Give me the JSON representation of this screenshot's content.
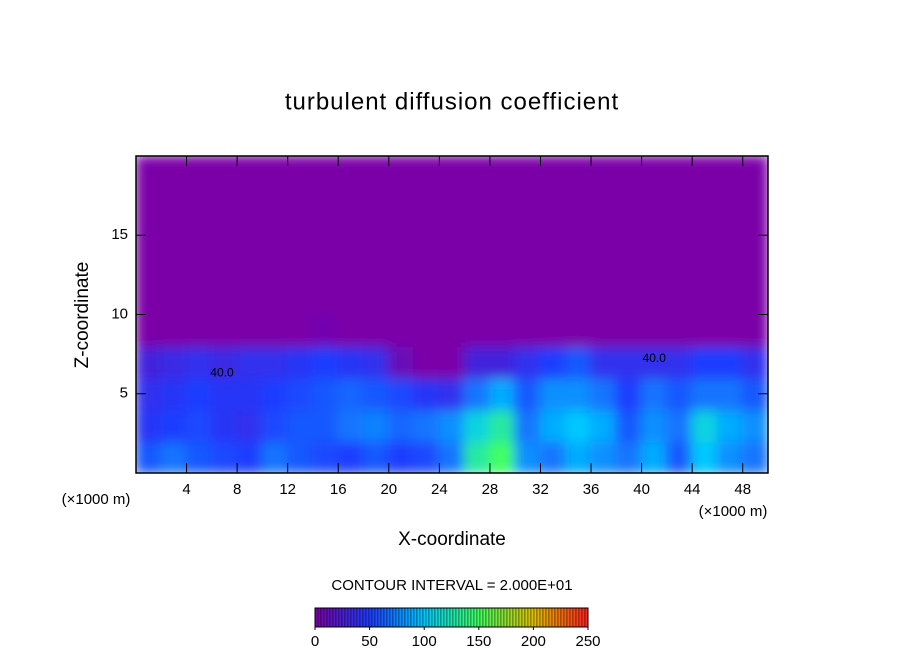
{
  "chart_data": {
    "type": "heatmap",
    "title": "turbulent diffusion coefficient",
    "xlabel": "X-coordinate",
    "ylabel": "Z-coordinate",
    "x_unit_label": "(×1000 m)",
    "y_unit_label": "(×1000 m)",
    "contour_interval_text": "CONTOUR INTERVAL = 2.000E+01",
    "xlim": [
      0,
      50
    ],
    "ylim": [
      0,
      20
    ],
    "xticks": [
      4,
      8,
      12,
      16,
      20,
      24,
      28,
      32,
      36,
      40,
      44,
      48
    ],
    "yticks": [
      5,
      10,
      15
    ],
    "x": [
      1,
      3,
      5,
      7,
      9,
      11,
      13,
      15,
      17,
      19,
      21,
      23,
      25,
      27,
      29,
      31,
      33,
      35,
      37,
      39,
      41,
      43,
      45,
      47,
      49
    ],
    "y": [
      1,
      3,
      5,
      7,
      9,
      11,
      13,
      15,
      17,
      19
    ],
    "z": [
      [
        60,
        70,
        60,
        55,
        50,
        70,
        60,
        55,
        50,
        60,
        50,
        55,
        70,
        130,
        150,
        80,
        70,
        90,
        80,
        70,
        90,
        60,
        100,
        80,
        70
      ],
      [
        45,
        50,
        55,
        45,
        40,
        55,
        60,
        60,
        70,
        75,
        65,
        70,
        80,
        110,
        130,
        70,
        90,
        100,
        90,
        60,
        80,
        70,
        110,
        90,
        80
      ],
      [
        40,
        45,
        50,
        45,
        45,
        50,
        55,
        60,
        65,
        60,
        55,
        45,
        40,
        70,
        90,
        60,
        80,
        80,
        70,
        50,
        70,
        60,
        70,
        70,
        60
      ],
      [
        30,
        35,
        40,
        35,
        40,
        40,
        45,
        50,
        45,
        40,
        10,
        0,
        0,
        30,
        30,
        40,
        50,
        60,
        40,
        40,
        40,
        40,
        50,
        50,
        40
      ],
      [
        0,
        0,
        0,
        0,
        0,
        0,
        0,
        5,
        0,
        0,
        0,
        0,
        0,
        0,
        0,
        0,
        0,
        0,
        0,
        0,
        0,
        0,
        0,
        0,
        0
      ],
      [
        0,
        0,
        0,
        0,
        0,
        0,
        0,
        0,
        0,
        0,
        0,
        0,
        0,
        0,
        0,
        0,
        0,
        0,
        0,
        0,
        0,
        0,
        0,
        0,
        0
      ],
      [
        0,
        0,
        0,
        0,
        0,
        0,
        0,
        0,
        0,
        0,
        0,
        0,
        0,
        0,
        0,
        0,
        0,
        0,
        0,
        0,
        0,
        0,
        0,
        0,
        0
      ],
      [
        0,
        0,
        0,
        0,
        0,
        0,
        0,
        0,
        0,
        0,
        0,
        0,
        0,
        0,
        0,
        0,
        0,
        0,
        0,
        0,
        0,
        0,
        0,
        0,
        0
      ],
      [
        0,
        0,
        0,
        0,
        0,
        0,
        0,
        0,
        0,
        0,
        0,
        0,
        0,
        0,
        0,
        0,
        0,
        0,
        0,
        0,
        0,
        0,
        0,
        0,
        0
      ],
      [
        0,
        0,
        0,
        0,
        0,
        0,
        0,
        0,
        0,
        0,
        0,
        0,
        0,
        0,
        0,
        0,
        0,
        0,
        0,
        0,
        0,
        0,
        0,
        0,
        0
      ]
    ],
    "contour_labels": [
      {
        "label": "40.0",
        "x": 6.8,
        "z": 6.3
      },
      {
        "label": "40.0",
        "x": 41,
        "z": 7.2
      }
    ],
    "colorscale": [
      [
        0,
        "#7b00a8"
      ],
      [
        50,
        "#1e3cff"
      ],
      [
        100,
        "#00c8ff"
      ],
      [
        150,
        "#40ff60"
      ],
      [
        200,
        "#e0c000"
      ],
      [
        250,
        "#ff2020"
      ]
    ],
    "colorbar_lim": [
      0,
      250
    ],
    "colorbar_ticks": [
      0,
      50,
      100,
      150,
      200,
      250
    ]
  }
}
